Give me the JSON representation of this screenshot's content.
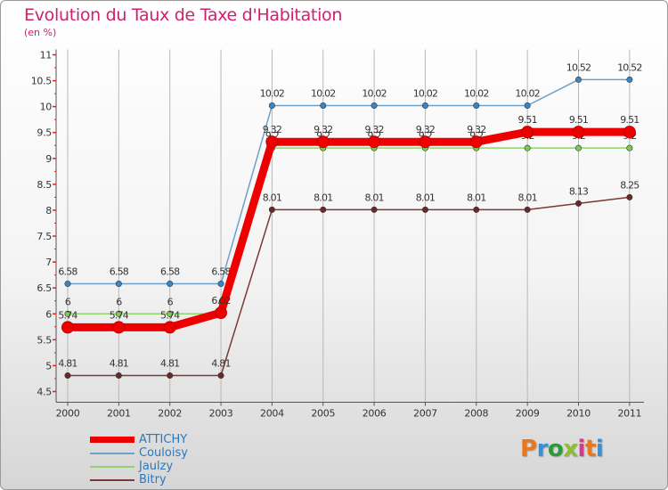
{
  "title": "Evolution du Taux de Taxe d'Habitation",
  "subtitle": "(en %)",
  "chart_data": {
    "type": "line",
    "title": "Evolution du Taux de Taxe d'Habitation",
    "ylabel": "(en %)",
    "xlabel": "",
    "ylim": [
      4.5,
      11
    ],
    "y_ticks": [
      4.5,
      5,
      5.5,
      6,
      6.5,
      7,
      7.5,
      8,
      8.5,
      9,
      9.5,
      10,
      10.5,
      11
    ],
    "y_tick_labels": [
      "4.5",
      "5",
      "5.5",
      "6",
      "6.5",
      "7",
      "7.5",
      "8",
      "8.5",
      "9",
      "9.5",
      "10",
      "10.5",
      "11"
    ],
    "categories": [
      "2000",
      "2001",
      "2002",
      "2003",
      "2004",
      "2005",
      "2006",
      "2007",
      "2008",
      "2009",
      "2010",
      "2011"
    ],
    "series": [
      {
        "name": "Couloisy",
        "color": "#6fa0c8",
        "marker_color": "#3a85c3",
        "values": [
          6.58,
          6.58,
          6.58,
          6.58,
          10.02,
          10.02,
          10.02,
          10.02,
          10.02,
          10.02,
          10.52,
          10.52
        ],
        "labels": [
          "6.58",
          "6.58",
          "6.58",
          "6.58",
          "10.02",
          "10.02",
          "10.02",
          "10.02",
          "10.02",
          "10.02",
          "10.52",
          "10.52"
        ]
      },
      {
        "name": "Jaulzy",
        "color": "#8fd46a",
        "marker_color": "#7ccc50",
        "values": [
          6,
          6,
          6,
          6,
          9.2,
          9.2,
          9.2,
          9.2,
          9.2,
          9.2,
          9.2,
          9.2
        ],
        "labels": [
          "6",
          "6",
          "6",
          "6",
          "9.2",
          "9.2",
          "9.2",
          "9.2",
          "9.2",
          "9.2",
          "9.2",
          "9.2"
        ]
      },
      {
        "name": "Bitry",
        "color": "#7a3838",
        "marker_color": "#6e2626",
        "values": [
          4.81,
          4.81,
          4.81,
          4.81,
          8.01,
          8.01,
          8.01,
          8.01,
          8.01,
          8.01,
          8.13,
          8.25
        ],
        "labels": [
          "4.81",
          "4.81",
          "4.81",
          "4.81",
          "8.01",
          "8.01",
          "8.01",
          "8.01",
          "8.01",
          "8.01",
          "8.13",
          "8.25"
        ]
      },
      {
        "name": "ATTICHY",
        "color": "#ee0000",
        "marker_color": "#ee0000",
        "values": [
          5.74,
          5.74,
          5.74,
          6.02,
          9.32,
          9.32,
          9.32,
          9.32,
          9.32,
          9.51,
          9.51,
          9.51
        ],
        "labels": [
          "5.74",
          "5.74",
          "5.74",
          "6.02",
          "9.32",
          "9.32",
          "9.32",
          "9.32",
          "9.32",
          "9.51",
          "9.51",
          "9.51"
        ]
      }
    ]
  },
  "legend": [
    {
      "name": "ATTICHY",
      "color": "#ee0000"
    },
    {
      "name": "Couloisy",
      "color": "#6fa0c8"
    },
    {
      "name": "Jaulzy",
      "color": "#8fd46a"
    },
    {
      "name": "Bitry",
      "color": "#7a3838"
    }
  ],
  "logo": {
    "text": "Proxiti",
    "letter_colors": [
      "#e8771e",
      "#3b8fd4",
      "#2f9a3a",
      "#8fbf2f",
      "#d43b8a",
      "#e8771e",
      "#3b8fd4"
    ]
  }
}
